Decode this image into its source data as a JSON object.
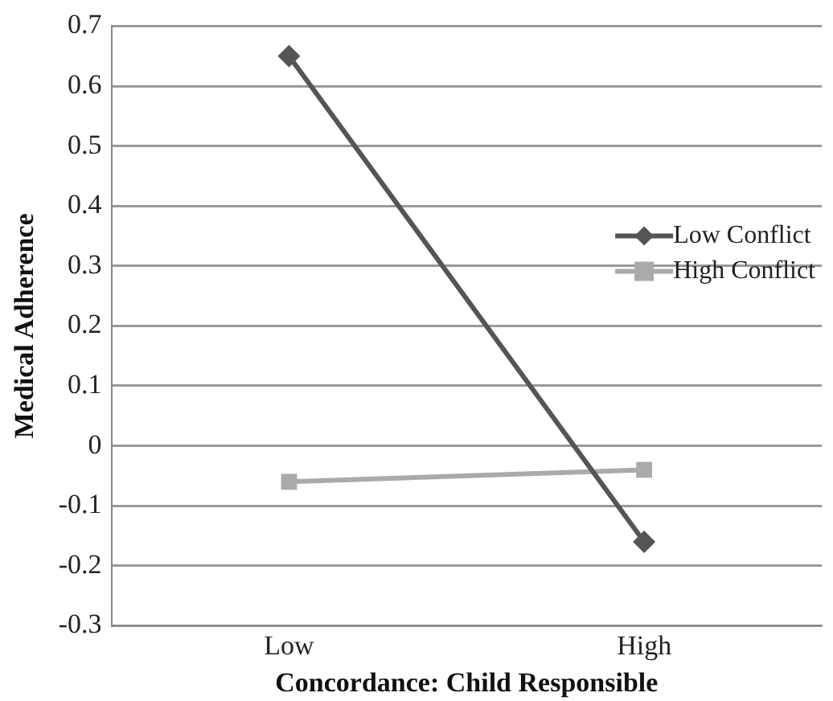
{
  "chart_data": {
    "type": "line",
    "xlabel": "Concordance: Child Responsible",
    "ylabel": "Medical Adherence",
    "categories": [
      "Low",
      "High"
    ],
    "series": [
      {
        "name": "Low Conflict",
        "color": "#555555",
        "marker": "diamond",
        "values": [
          0.65,
          -0.16
        ]
      },
      {
        "name": "High Conflict",
        "color": "#aaaaaa",
        "marker": "square",
        "values": [
          -0.06,
          -0.04
        ]
      }
    ],
    "ylim": [
      -0.3,
      0.7
    ],
    "yticks": [
      -0.3,
      -0.2,
      -0.1,
      0,
      0.1,
      0.2,
      0.3,
      0.4,
      0.5,
      0.6,
      0.7
    ],
    "grid": "y",
    "legend": "right"
  }
}
